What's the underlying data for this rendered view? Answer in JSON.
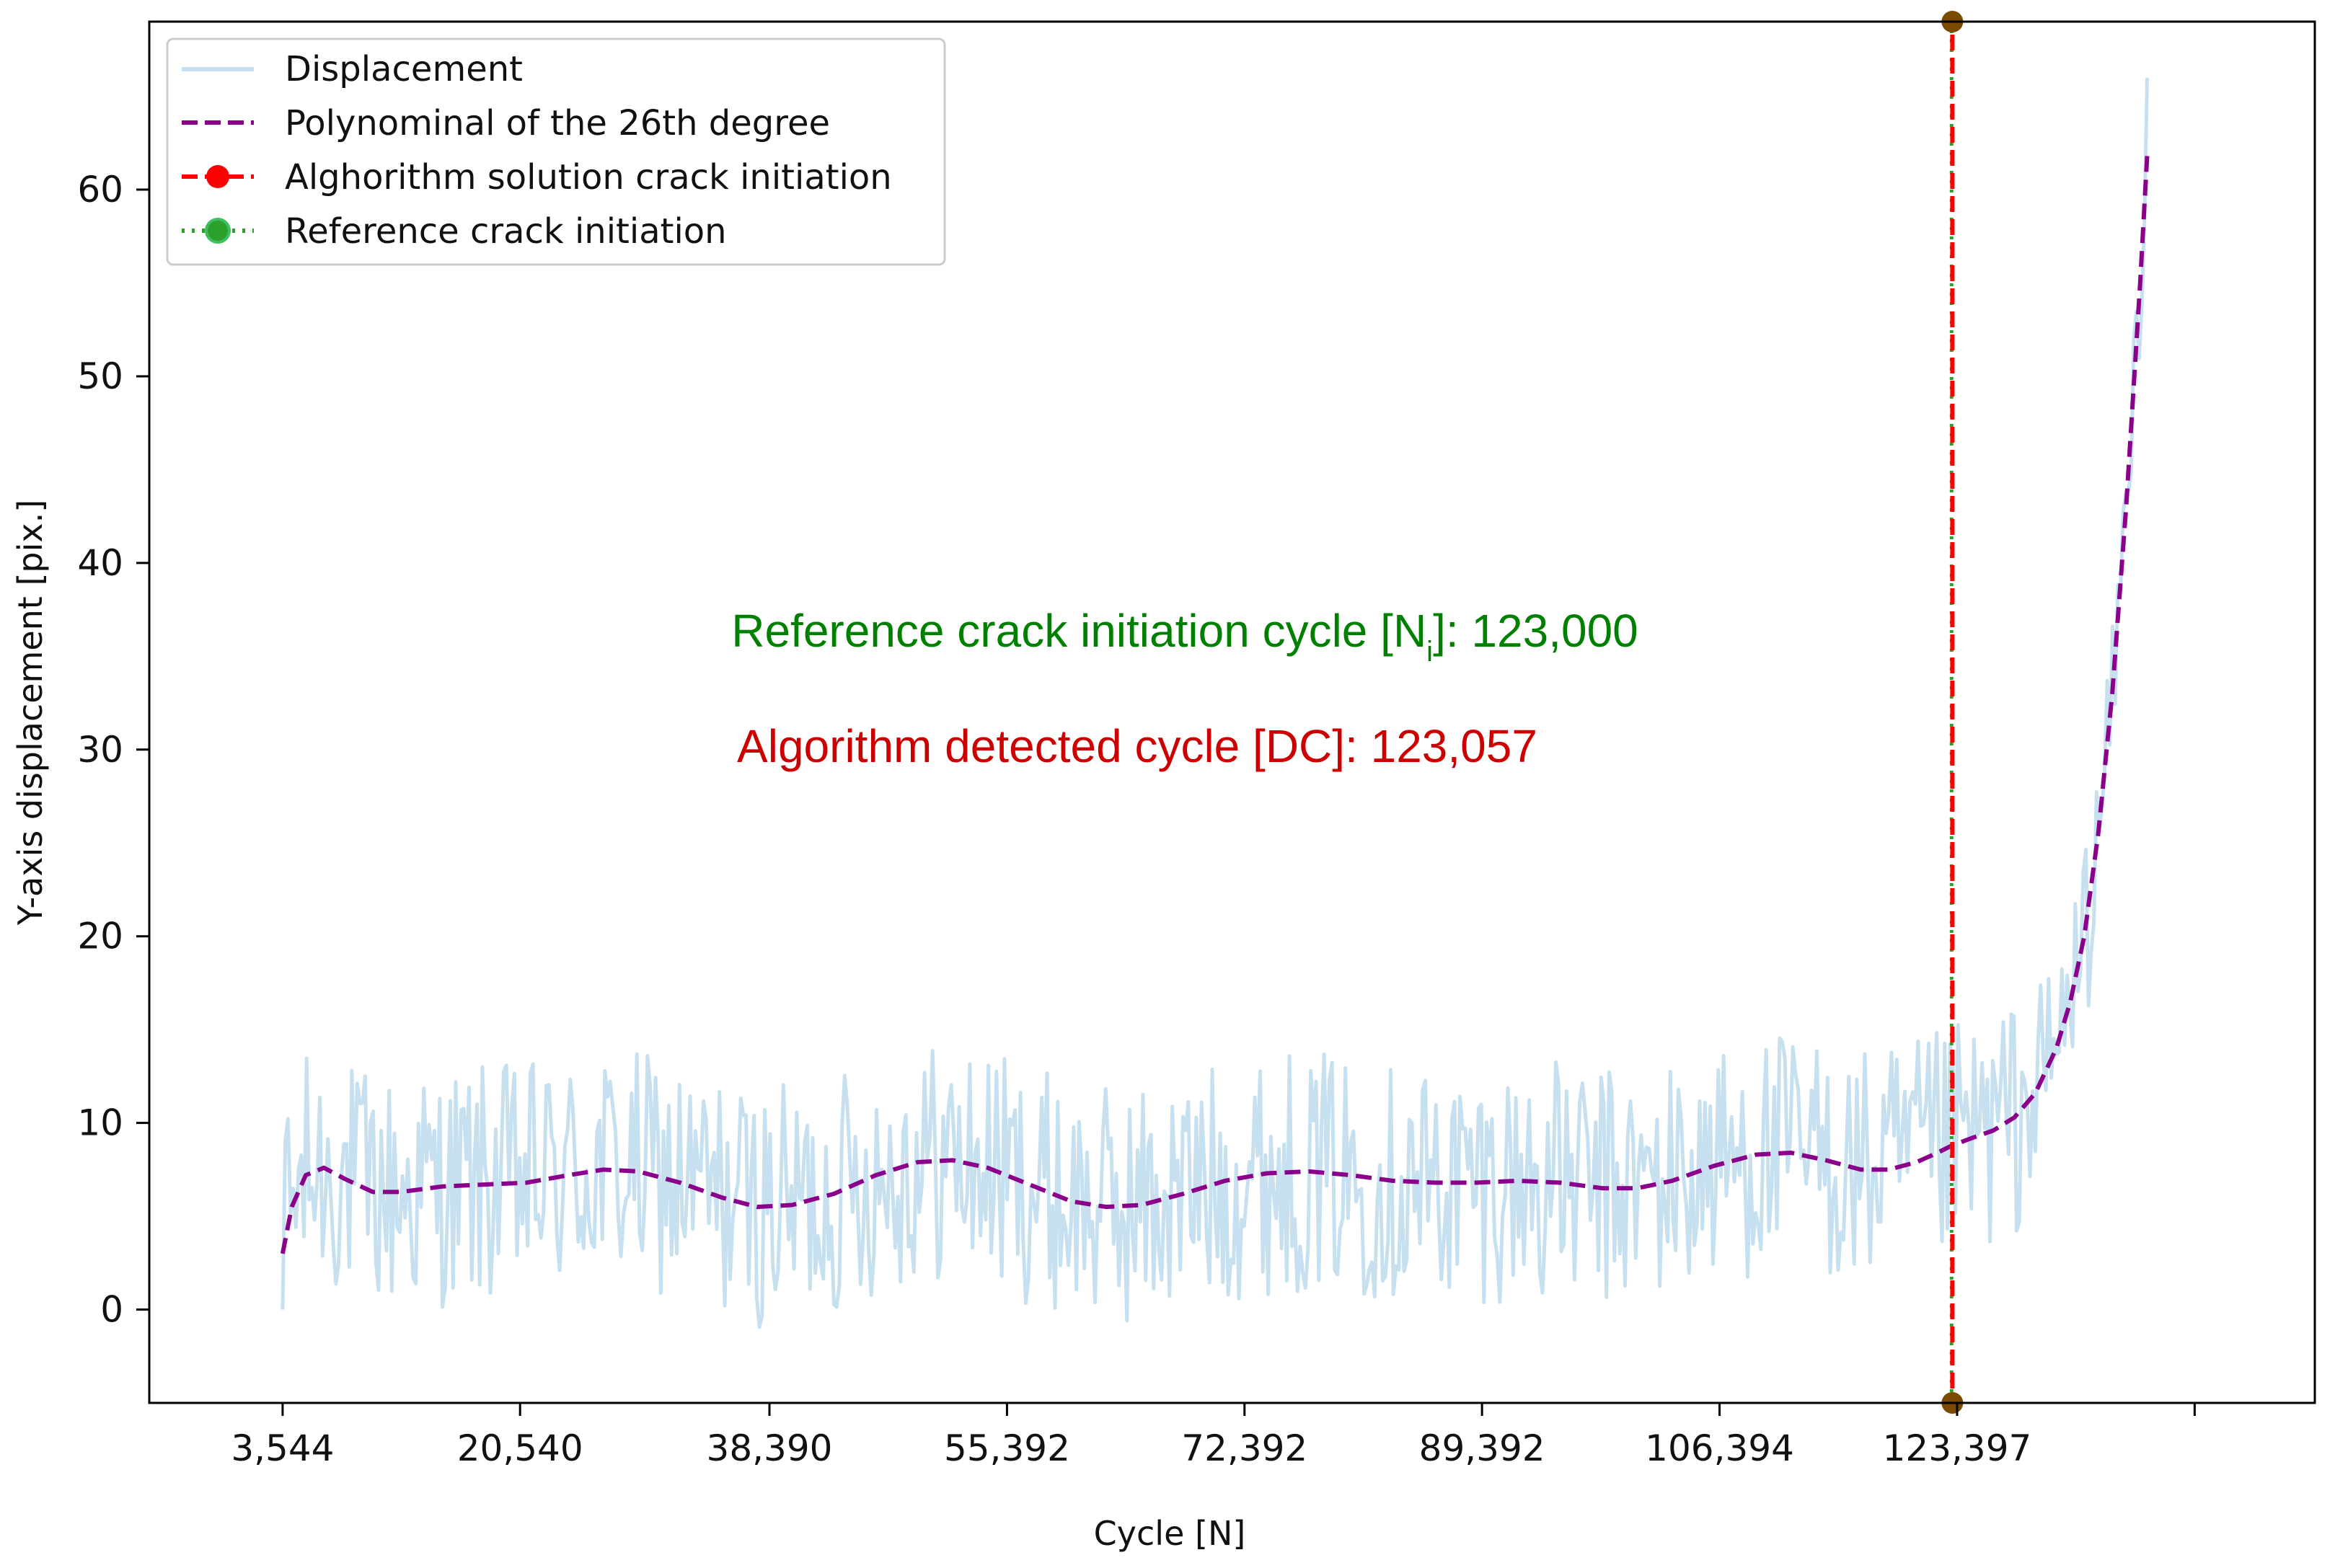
{
  "chart_data": {
    "type": "line",
    "title": "",
    "xlabel": "Cycle [N]",
    "ylabel": "Y-axis displacement [pix.]",
    "xlim": [
      -6000,
      149000
    ],
    "ylim": [
      -5,
      69
    ],
    "x_ticks": [
      {
        "value": 3544,
        "label": "3,544"
      },
      {
        "value": 20540,
        "label": "20,540"
      },
      {
        "value": 38390,
        "label": "38,390"
      },
      {
        "value": 55392,
        "label": "55,392"
      },
      {
        "value": 72392,
        "label": "72,392"
      },
      {
        "value": 89392,
        "label": "89,392"
      },
      {
        "value": 106394,
        "label": "106,394"
      },
      {
        "value": 123397,
        "label": "123,397"
      },
      {
        "value": 140400,
        "label": ""
      }
    ],
    "y_ticks": [
      {
        "value": 0,
        "label": "0"
      },
      {
        "value": 10,
        "label": "10"
      },
      {
        "value": 20,
        "label": "20"
      },
      {
        "value": 30,
        "label": "30"
      },
      {
        "value": 40,
        "label": "40"
      },
      {
        "value": 50,
        "label": "50"
      },
      {
        "value": 60,
        "label": "60"
      }
    ],
    "legend_position": "top-left",
    "series": [
      {
        "name": "Displacement",
        "style": "solid",
        "color": "#c6e0ef",
        "note": "noisy signal around the fitted curve, amplitude about ±6.5, rising sharply at the end",
        "x": [
          3544,
          3700,
          4500,
          6000,
          8000,
          10000,
          20000,
          40000,
          60000,
          80000,
          100000,
          115000,
          120000,
          123057,
          126000,
          129000,
          131000,
          133000,
          134500,
          135500,
          136500,
          137000
        ],
        "values": [
          0,
          9,
          7.5,
          6.5,
          6.8,
          6.5,
          7.0,
          5.6,
          5.6,
          7.2,
          6.6,
          8.0,
          7.8,
          8.8,
          9.6,
          11.5,
          15,
          19,
          24,
          30,
          40,
          66
        ]
      },
      {
        "name": "Polynominal of the 26th degree",
        "style": "dashed",
        "color": "#8b008b",
        "x": [
          3544,
          4200,
          5200,
          6500,
          8000,
          10000,
          12000,
          15000,
          18000,
          21000,
          24000,
          26500,
          29000,
          32000,
          35000,
          37500,
          40000,
          43000,
          46000,
          49000,
          51500,
          54000,
          57000,
          60000,
          62500,
          65000,
          68000,
          71000,
          74000,
          77000,
          80000,
          83000,
          86000,
          89000,
          92000,
          95000,
          98000,
          100500,
          103000,
          106000,
          109000,
          111500,
          114000,
          116500,
          118500,
          120500,
          122000,
          123057,
          124500,
          126000,
          127500,
          129000,
          130500,
          131500,
          132500,
          133500,
          134500,
          135500,
          136500,
          137000
        ],
        "values": [
          3.0,
          5.5,
          7.2,
          7.6,
          7.0,
          6.3,
          6.3,
          6.6,
          6.7,
          6.8,
          7.2,
          7.5,
          7.4,
          6.8,
          6.0,
          5.5,
          5.6,
          6.2,
          7.2,
          7.9,
          8.0,
          7.6,
          6.7,
          5.8,
          5.5,
          5.6,
          6.2,
          6.9,
          7.3,
          7.4,
          7.2,
          6.9,
          6.8,
          6.8,
          6.9,
          6.8,
          6.5,
          6.5,
          6.9,
          7.7,
          8.3,
          8.4,
          8.0,
          7.5,
          7.5,
          7.9,
          8.4,
          8.8,
          9.2,
          9.6,
          10.3,
          11.6,
          14.0,
          16.5,
          20.0,
          25.5,
          33.0,
          43.0,
          55.0,
          61.8
        ]
      }
    ],
    "vertical_lines": [
      {
        "name": "Alghorithm solution crack initiation",
        "x": 123057,
        "style": "dashed",
        "color": "#ff0000"
      },
      {
        "name": "Reference crack initiation",
        "x": 123000,
        "style": "dotted",
        "color": "#2ca02c",
        "overlay_color": "#7a4a00"
      }
    ],
    "legend": [
      {
        "label": "Displacement",
        "key": "line",
        "color": "#c6e0ef"
      },
      {
        "label": "Polynominal of the 26th degree",
        "key": "dashed",
        "color": "#8b008b"
      },
      {
        "label": "Alghorithm solution crack initiation",
        "key": "dashed-marker",
        "color": "#ff0000"
      },
      {
        "label": "Reference crack initiation",
        "key": "dotted-marker",
        "color": "#2ca02c"
      }
    ],
    "annotations": [
      {
        "text_main": "Reference crack initiation cycle [N",
        "text_sub": "i",
        "text_tail": "]: 123,000",
        "color": "#008000",
        "x": 68000,
        "y": 36.2
      },
      {
        "text_main": "Algorithm detected cycle [DC]: 123,057",
        "color": "#cc0000",
        "x": 68000,
        "y": 30.0
      }
    ]
  }
}
